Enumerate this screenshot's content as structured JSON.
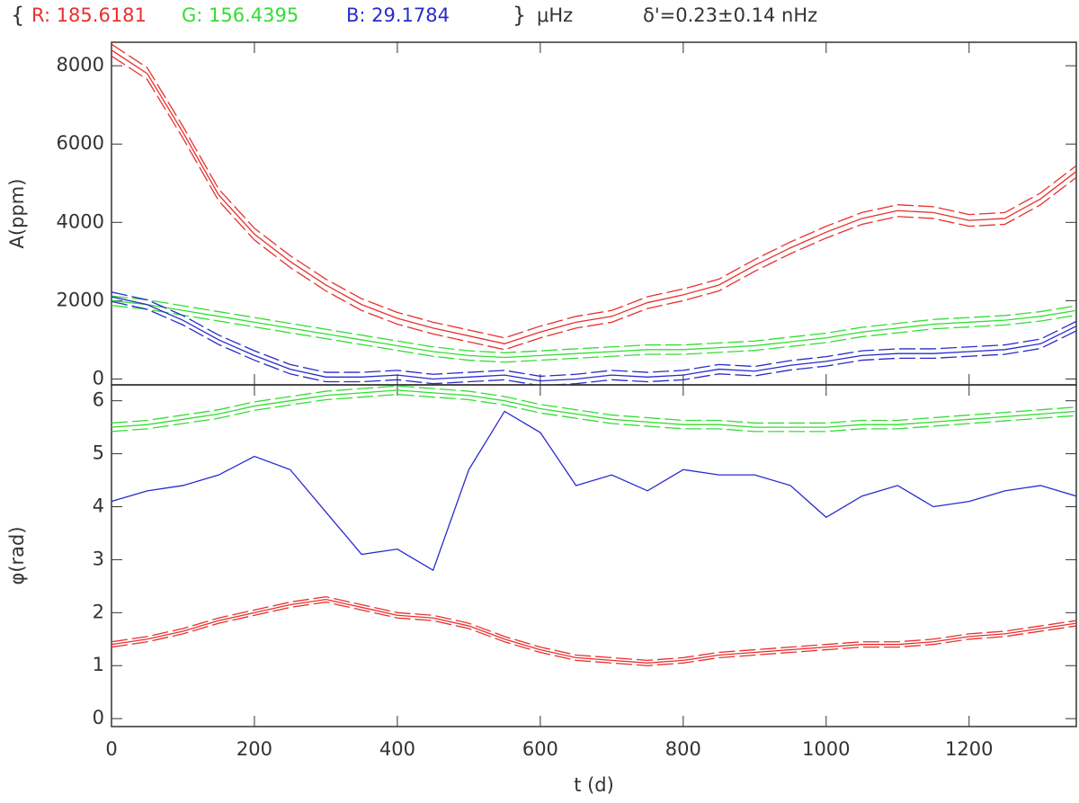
{
  "header": {
    "open": "{",
    "r": "R: 185.6181",
    "g": "G: 156.4395",
    "b": "B: 29.1784",
    "close": "}",
    "unit": "μHz",
    "delta": "δ'=0.23±0.14 nHz"
  },
  "chart_data": [
    {
      "type": "line",
      "ylabel": "A(ppm)",
      "x": [
        0,
        50,
        100,
        150,
        200,
        250,
        300,
        350,
        400,
        450,
        500,
        550,
        600,
        650,
        700,
        750,
        800,
        850,
        900,
        950,
        1000,
        1050,
        1100,
        1150,
        1200,
        1250,
        1300,
        1350
      ],
      "xlim": [
        0,
        1350
      ],
      "xticks": [
        0,
        200,
        400,
        600,
        800,
        1000,
        1200
      ],
      "ylim": [
        -150,
        8600
      ],
      "yticks": [
        0,
        2000,
        4000,
        6000,
        8000
      ],
      "series": [
        {
          "name": "R",
          "color": "#e8302f",
          "error": 150,
          "values": [
            8400,
            7800,
            6300,
            4700,
            3700,
            3000,
            2400,
            1900,
            1550,
            1300,
            1100,
            900,
            1200,
            1450,
            1600,
            1950,
            2150,
            2400,
            2900,
            3350,
            3750,
            4100,
            4300,
            4250,
            4050,
            4100,
            4600,
            5300
          ]
        },
        {
          "name": "G",
          "color": "#33dd33",
          "error": 120,
          "values": [
            2000,
            1900,
            1750,
            1600,
            1450,
            1300,
            1150,
            1000,
            850,
            700,
            600,
            550,
            600,
            650,
            700,
            750,
            750,
            800,
            850,
            950,
            1050,
            1200,
            1300,
            1400,
            1450,
            1500,
            1600,
            1750
          ]
        },
        {
          "name": "B",
          "color": "#2a2acc",
          "error": 120,
          "values": [
            2100,
            1900,
            1500,
            1000,
            600,
            250,
            50,
            50,
            100,
            0,
            50,
            100,
            -50,
            0,
            100,
            50,
            100,
            250,
            200,
            350,
            450,
            600,
            650,
            650,
            700,
            750,
            900,
            1350
          ]
        }
      ]
    },
    {
      "type": "line",
      "ylabel": "φ(rad)",
      "xlabel": "t (d)",
      "x": [
        0,
        50,
        100,
        150,
        200,
        250,
        300,
        350,
        400,
        450,
        500,
        550,
        600,
        650,
        700,
        750,
        800,
        850,
        900,
        950,
        1000,
        1050,
        1100,
        1150,
        1200,
        1250,
        1300,
        1350
      ],
      "xlim": [
        0,
        1350
      ],
      "xticks": [
        0,
        200,
        400,
        600,
        800,
        1000,
        1200
      ],
      "ylim": [
        -0.15,
        6.3
      ],
      "yticks": [
        0,
        1,
        2,
        3,
        4,
        5,
        6
      ],
      "series": [
        {
          "name": "R",
          "color": "#e8302f",
          "error": 0.05,
          "values": [
            1.4,
            1.5,
            1.65,
            1.85,
            2.0,
            2.15,
            2.25,
            2.1,
            1.95,
            1.9,
            1.75,
            1.5,
            1.3,
            1.15,
            1.1,
            1.05,
            1.1,
            1.2,
            1.25,
            1.3,
            1.35,
            1.4,
            1.4,
            1.45,
            1.55,
            1.6,
            1.7,
            1.8
          ]
        },
        {
          "name": "G",
          "color": "#33dd33",
          "error": 0.08,
          "values": [
            5.5,
            5.55,
            5.65,
            5.75,
            5.9,
            6.0,
            6.1,
            6.15,
            6.2,
            6.15,
            6.1,
            6.0,
            5.85,
            5.75,
            5.65,
            5.6,
            5.55,
            5.55,
            5.5,
            5.5,
            5.5,
            5.55,
            5.55,
            5.6,
            5.65,
            5.7,
            5.75,
            5.8
          ]
        },
        {
          "name": "B",
          "color": "#2a2acc",
          "values": [
            4.1,
            4.3,
            4.4,
            4.6,
            4.95,
            4.7,
            3.9,
            3.1,
            3.2,
            2.8,
            4.7,
            5.8,
            5.4,
            4.4,
            4.6,
            4.3,
            4.7,
            4.6,
            4.6,
            4.4,
            3.8,
            4.2,
            4.4,
            4.0,
            4.1,
            4.3,
            4.4,
            4.2
          ]
        }
      ]
    }
  ]
}
